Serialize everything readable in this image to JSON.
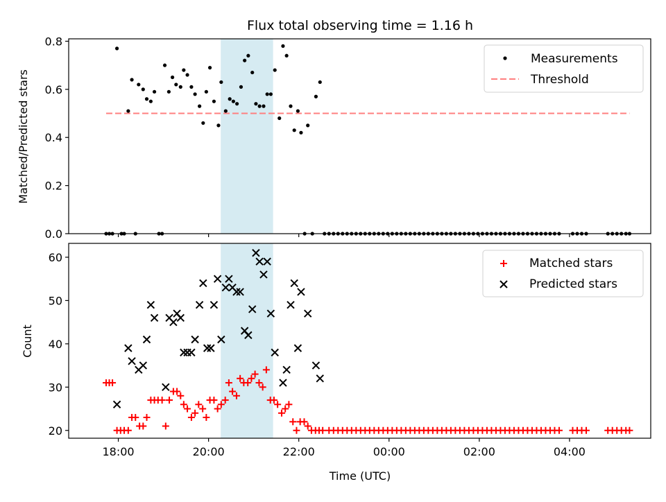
{
  "chart_data": {
    "title": "Flux total observing time = 1.16 h",
    "xlabel": "Time (UTC)",
    "x_units": "hours since 00:00 of first night (24 = 00:00 next day)",
    "xlim": [
      16.9,
      29.8
    ],
    "x_ticks": [
      {
        "x": 18,
        "label": "18:00"
      },
      {
        "x": 20,
        "label": "20:00"
      },
      {
        "x": 22,
        "label": "22:00"
      },
      {
        "x": 24,
        "label": "00:00"
      },
      {
        "x": 26,
        "label": "02:00"
      },
      {
        "x": 28,
        "label": "04:00"
      }
    ],
    "highlight_span": {
      "x0": 20.27,
      "x1": 21.43,
      "color": "#add8e6"
    },
    "colors": {
      "measure": "#000000",
      "threshold": "#ff7f7f",
      "matched": "#ff0000",
      "predicted": "#000000",
      "span": "#add8e6"
    },
    "top": {
      "type": "scatter",
      "ylabel": "Matched/Predicted stars",
      "ylim": [
        0,
        0.81
      ],
      "y_ticks": [
        "0.0",
        "0.2",
        "0.4",
        "0.6",
        "0.8"
      ],
      "threshold": {
        "value": 0.5,
        "x0": 17.73,
        "x1": 29.33,
        "label": "Threshold"
      },
      "legend": [
        "Measurements",
        "Threshold"
      ],
      "measurements": [
        [
          17.73,
          0
        ],
        [
          17.8,
          0
        ],
        [
          17.87,
          0
        ],
        [
          17.97,
          0.77
        ],
        [
          18.07,
          0
        ],
        [
          18.13,
          0
        ],
        [
          18.22,
          0.51
        ],
        [
          18.3,
          0.64
        ],
        [
          18.38,
          0
        ],
        [
          18.45,
          0.62
        ],
        [
          18.55,
          0.6
        ],
        [
          18.63,
          0.56
        ],
        [
          18.72,
          0.55
        ],
        [
          18.8,
          0.59
        ],
        [
          18.9,
          0
        ],
        [
          18.97,
          0
        ],
        [
          19.03,
          0.7
        ],
        [
          19.12,
          0.59
        ],
        [
          19.2,
          0.65
        ],
        [
          19.28,
          0.62
        ],
        [
          19.38,
          0.61
        ],
        [
          19.45,
          0.68
        ],
        [
          19.53,
          0.66
        ],
        [
          19.62,
          0.61
        ],
        [
          19.7,
          0.58
        ],
        [
          19.8,
          0.53
        ],
        [
          19.88,
          0.46
        ],
        [
          19.95,
          0.59
        ],
        [
          20.03,
          0.69
        ],
        [
          20.12,
          0.55
        ],
        [
          20.22,
          0.45
        ],
        [
          20.28,
          0.63
        ],
        [
          20.38,
          0.51
        ],
        [
          20.47,
          0.56
        ],
        [
          20.55,
          0.55
        ],
        [
          20.63,
          0.54
        ],
        [
          20.72,
          0.61
        ],
        [
          20.8,
          0.72
        ],
        [
          20.88,
          0.74
        ],
        [
          20.97,
          0.67
        ],
        [
          21.05,
          0.54
        ],
        [
          21.13,
          0.53
        ],
        [
          21.22,
          0.53
        ],
        [
          21.3,
          0.58
        ],
        [
          21.38,
          0.58
        ],
        [
          21.47,
          0.68
        ],
        [
          21.57,
          0.48
        ],
        [
          21.65,
          0.78
        ],
        [
          21.73,
          0.74
        ],
        [
          21.82,
          0.53
        ],
        [
          21.9,
          0.43
        ],
        [
          21.98,
          0.51
        ],
        [
          22.05,
          0.42
        ],
        [
          22.13,
          0
        ],
        [
          22.2,
          0.45
        ],
        [
          22.3,
          0
        ],
        [
          22.38,
          0.57
        ],
        [
          22.47,
          0.63
        ],
        [
          22.57,
          0
        ],
        [
          22.67,
          0
        ],
        [
          22.77,
          0
        ],
        [
          22.87,
          0
        ],
        [
          22.97,
          0
        ],
        [
          23.07,
          0
        ],
        [
          23.17,
          0
        ],
        [
          23.27,
          0
        ],
        [
          23.37,
          0
        ],
        [
          23.47,
          0
        ],
        [
          23.57,
          0
        ],
        [
          23.67,
          0
        ],
        [
          23.77,
          0
        ],
        [
          23.87,
          0
        ],
        [
          23.97,
          0
        ],
        [
          24.07,
          0
        ],
        [
          24.17,
          0
        ],
        [
          24.27,
          0
        ],
        [
          24.37,
          0
        ],
        [
          24.47,
          0
        ],
        [
          24.57,
          0
        ],
        [
          24.67,
          0
        ],
        [
          24.77,
          0
        ],
        [
          24.87,
          0
        ],
        [
          24.97,
          0
        ],
        [
          25.07,
          0
        ],
        [
          25.17,
          0
        ],
        [
          25.27,
          0
        ],
        [
          25.37,
          0
        ],
        [
          25.47,
          0
        ],
        [
          25.57,
          0
        ],
        [
          25.67,
          0
        ],
        [
          25.77,
          0
        ],
        [
          25.87,
          0
        ],
        [
          25.97,
          0
        ],
        [
          26.07,
          0
        ],
        [
          26.17,
          0
        ],
        [
          26.27,
          0
        ],
        [
          26.37,
          0
        ],
        [
          26.47,
          0
        ],
        [
          26.57,
          0
        ],
        [
          26.67,
          0
        ],
        [
          26.77,
          0
        ],
        [
          26.87,
          0
        ],
        [
          26.97,
          0
        ],
        [
          27.07,
          0
        ],
        [
          27.17,
          0
        ],
        [
          27.27,
          0
        ],
        [
          27.37,
          0
        ],
        [
          27.47,
          0
        ],
        [
          27.57,
          0
        ],
        [
          27.67,
          0
        ],
        [
          27.77,
          0
        ],
        [
          28.07,
          0
        ],
        [
          28.17,
          0
        ],
        [
          28.27,
          0
        ],
        [
          28.37,
          0
        ],
        [
          28.85,
          0
        ],
        [
          28.95,
          0
        ],
        [
          29.05,
          0
        ],
        [
          29.15,
          0
        ],
        [
          29.25,
          0
        ],
        [
          29.33,
          0
        ]
      ]
    },
    "bottom": {
      "type": "scatter",
      "ylabel": "Count",
      "ylim": [
        18.2,
        63.2
      ],
      "y_ticks": [
        "20",
        "30",
        "40",
        "50",
        "60"
      ],
      "legend": [
        "Matched stars",
        "Predicted stars"
      ],
      "matched": [
        [
          17.73,
          31
        ],
        [
          17.8,
          31
        ],
        [
          17.87,
          31
        ],
        [
          17.97,
          20
        ],
        [
          18.05,
          20
        ],
        [
          18.13,
          20
        ],
        [
          18.22,
          20
        ],
        [
          18.3,
          23
        ],
        [
          18.38,
          23
        ],
        [
          18.47,
          21
        ],
        [
          18.55,
          21
        ],
        [
          18.63,
          23
        ],
        [
          18.72,
          27
        ],
        [
          18.8,
          27
        ],
        [
          18.88,
          27
        ],
        [
          18.97,
          27
        ],
        [
          19.05,
          21
        ],
        [
          19.13,
          27
        ],
        [
          19.22,
          29
        ],
        [
          19.3,
          29
        ],
        [
          19.38,
          28
        ],
        [
          19.45,
          26
        ],
        [
          19.53,
          25
        ],
        [
          19.62,
          23
        ],
        [
          19.7,
          24
        ],
        [
          19.78,
          26
        ],
        [
          19.87,
          25
        ],
        [
          19.95,
          23
        ],
        [
          20.03,
          27
        ],
        [
          20.12,
          27
        ],
        [
          20.2,
          25
        ],
        [
          20.28,
          26
        ],
        [
          20.37,
          27
        ],
        [
          20.45,
          31
        ],
        [
          20.53,
          29
        ],
        [
          20.62,
          28
        ],
        [
          20.7,
          32
        ],
        [
          20.78,
          31
        ],
        [
          20.87,
          31
        ],
        [
          20.95,
          32
        ],
        [
          21.03,
          33
        ],
        [
          21.12,
          31
        ],
        [
          21.2,
          30
        ],
        [
          21.28,
          34
        ],
        [
          21.37,
          27
        ],
        [
          21.45,
          27
        ],
        [
          21.53,
          26
        ],
        [
          21.62,
          24
        ],
        [
          21.7,
          25
        ],
        [
          21.78,
          26
        ],
        [
          21.87,
          22
        ],
        [
          21.95,
          20
        ],
        [
          22.03,
          22
        ],
        [
          22.12,
          22
        ],
        [
          22.2,
          21
        ],
        [
          22.28,
          20
        ],
        [
          22.37,
          20
        ],
        [
          22.45,
          20
        ],
        [
          22.53,
          20
        ],
        [
          22.67,
          20
        ],
        [
          22.77,
          20
        ],
        [
          22.87,
          20
        ],
        [
          22.97,
          20
        ],
        [
          23.07,
          20
        ],
        [
          23.17,
          20
        ],
        [
          23.27,
          20
        ],
        [
          23.37,
          20
        ],
        [
          23.47,
          20
        ],
        [
          23.57,
          20
        ],
        [
          23.67,
          20
        ],
        [
          23.77,
          20
        ],
        [
          23.87,
          20
        ],
        [
          23.97,
          20
        ],
        [
          24.07,
          20
        ],
        [
          24.17,
          20
        ],
        [
          24.27,
          20
        ],
        [
          24.37,
          20
        ],
        [
          24.47,
          20
        ],
        [
          24.57,
          20
        ],
        [
          24.67,
          20
        ],
        [
          24.77,
          20
        ],
        [
          24.87,
          20
        ],
        [
          24.97,
          20
        ],
        [
          25.07,
          20
        ],
        [
          25.17,
          20
        ],
        [
          25.27,
          20
        ],
        [
          25.37,
          20
        ],
        [
          25.47,
          20
        ],
        [
          25.57,
          20
        ],
        [
          25.67,
          20
        ],
        [
          25.77,
          20
        ],
        [
          25.87,
          20
        ],
        [
          25.97,
          20
        ],
        [
          26.07,
          20
        ],
        [
          26.17,
          20
        ],
        [
          26.27,
          20
        ],
        [
          26.37,
          20
        ],
        [
          26.47,
          20
        ],
        [
          26.57,
          20
        ],
        [
          26.67,
          20
        ],
        [
          26.77,
          20
        ],
        [
          26.87,
          20
        ],
        [
          26.97,
          20
        ],
        [
          27.07,
          20
        ],
        [
          27.17,
          20
        ],
        [
          27.27,
          20
        ],
        [
          27.37,
          20
        ],
        [
          27.47,
          20
        ],
        [
          27.57,
          20
        ],
        [
          27.67,
          20
        ],
        [
          27.77,
          20
        ],
        [
          28.07,
          20
        ],
        [
          28.17,
          20
        ],
        [
          28.27,
          20
        ],
        [
          28.37,
          20
        ],
        [
          28.85,
          20
        ],
        [
          28.95,
          20
        ],
        [
          29.05,
          20
        ],
        [
          29.15,
          20
        ],
        [
          29.25,
          20
        ],
        [
          29.33,
          20
        ]
      ],
      "predicted": [
        [
          17.97,
          26
        ],
        [
          18.22,
          39
        ],
        [
          18.3,
          36
        ],
        [
          18.45,
          34
        ],
        [
          18.55,
          35
        ],
        [
          18.63,
          41
        ],
        [
          18.72,
          49
        ],
        [
          18.8,
          46
        ],
        [
          19.05,
          30
        ],
        [
          19.13,
          46
        ],
        [
          19.22,
          45
        ],
        [
          19.3,
          47
        ],
        [
          19.38,
          46
        ],
        [
          19.45,
          38
        ],
        [
          19.53,
          38
        ],
        [
          19.62,
          38
        ],
        [
          19.7,
          41
        ],
        [
          19.8,
          49
        ],
        [
          19.88,
          54
        ],
        [
          19.97,
          39
        ],
        [
          20.05,
          39
        ],
        [
          20.12,
          49
        ],
        [
          20.2,
          55
        ],
        [
          20.28,
          41
        ],
        [
          20.38,
          53
        ],
        [
          20.45,
          55
        ],
        [
          20.53,
          53
        ],
        [
          20.62,
          52
        ],
        [
          20.7,
          52
        ],
        [
          20.8,
          43
        ],
        [
          20.88,
          42
        ],
        [
          20.97,
          48
        ],
        [
          21.05,
          61
        ],
        [
          21.13,
          59
        ],
        [
          21.22,
          56
        ],
        [
          21.3,
          59
        ],
        [
          21.38,
          47
        ],
        [
          21.47,
          38
        ],
        [
          21.65,
          31
        ],
        [
          21.73,
          34
        ],
        [
          21.82,
          49
        ],
        [
          21.9,
          54
        ],
        [
          21.98,
          39
        ],
        [
          22.05,
          52
        ],
        [
          22.2,
          47
        ],
        [
          22.38,
          35
        ],
        [
          22.47,
          32
        ]
      ]
    }
  }
}
